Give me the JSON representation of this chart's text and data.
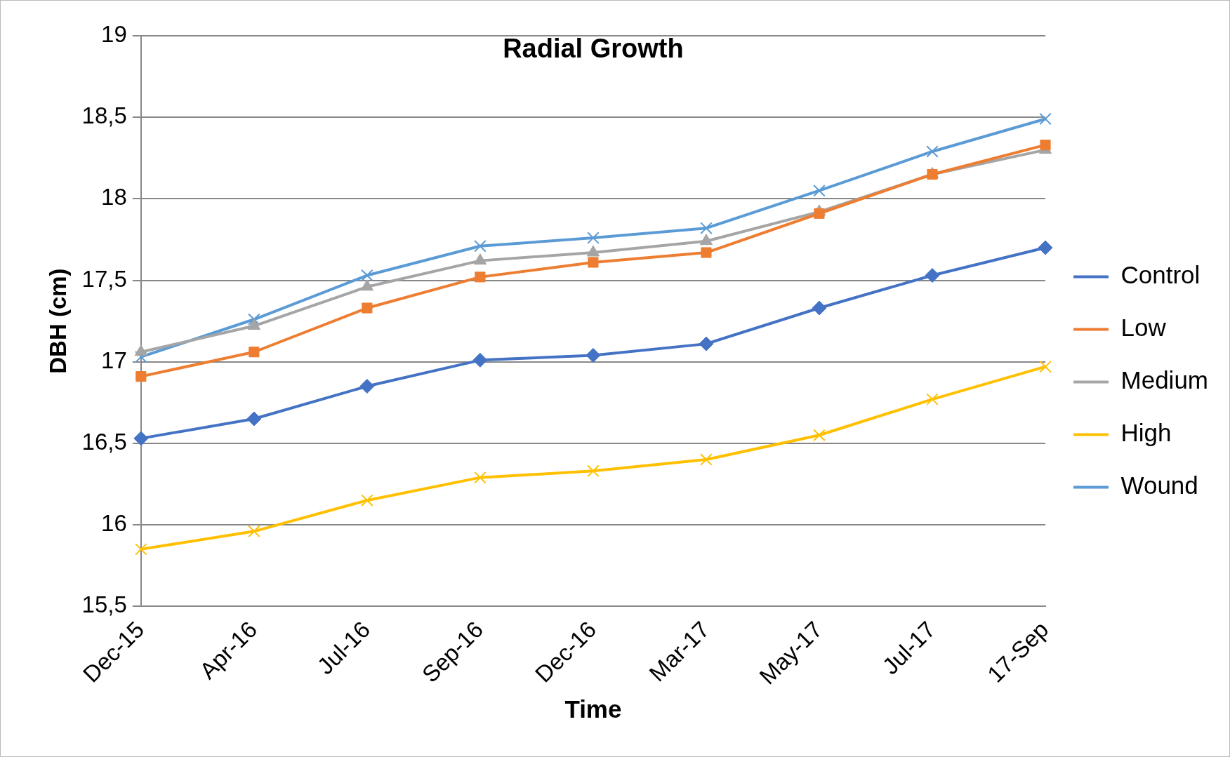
{
  "chart_data": {
    "type": "line",
    "title": "Radial Growth",
    "xlabel": "Time",
    "ylabel": "DBH (cm)",
    "categories": [
      "Dec-15",
      "Apr-16",
      "Jul-16",
      "Sep-16",
      "Dec-16",
      "Mar-17",
      "May-17",
      "Jul-17",
      "17-Sep"
    ],
    "series": [
      {
        "name": "Control",
        "color": "#4472c4",
        "marker": "diamond",
        "values": [
          16.53,
          16.65,
          16.85,
          17.01,
          17.04,
          17.11,
          17.33,
          17.53,
          17.7
        ]
      },
      {
        "name": "Low",
        "color": "#ed7d31",
        "marker": "square",
        "values": [
          16.91,
          17.06,
          17.33,
          17.52,
          17.61,
          17.67,
          17.91,
          18.15,
          18.33
        ]
      },
      {
        "name": "Medium",
        "color": "#a5a5a5",
        "marker": "triangle",
        "values": [
          17.06,
          17.22,
          17.46,
          17.62,
          17.67,
          17.74,
          17.92,
          18.15,
          18.3
        ]
      },
      {
        "name": "High",
        "color": "#ffc000",
        "marker": "cross",
        "values": [
          15.85,
          15.96,
          16.15,
          16.29,
          16.33,
          16.4,
          16.55,
          16.77,
          16.97
        ]
      },
      {
        "name": "Wound",
        "color": "#5b9bd5",
        "marker": "cross",
        "values": [
          17.03,
          17.26,
          17.53,
          17.71,
          17.76,
          17.82,
          18.05,
          18.29,
          18.49
        ]
      }
    ],
    "ylim": [
      15.5,
      19
    ],
    "yticks": [
      {
        "value": 15.5,
        "label": "15,5"
      },
      16,
      {
        "value": 16.5,
        "label": "16,5"
      },
      17,
      {
        "value": 17.5,
        "label": "17,5"
      },
      18,
      {
        "value": 18.5,
        "label": "18,5"
      },
      19
    ],
    "grid": "y",
    "legend": "right",
    "line_style": "solid"
  }
}
